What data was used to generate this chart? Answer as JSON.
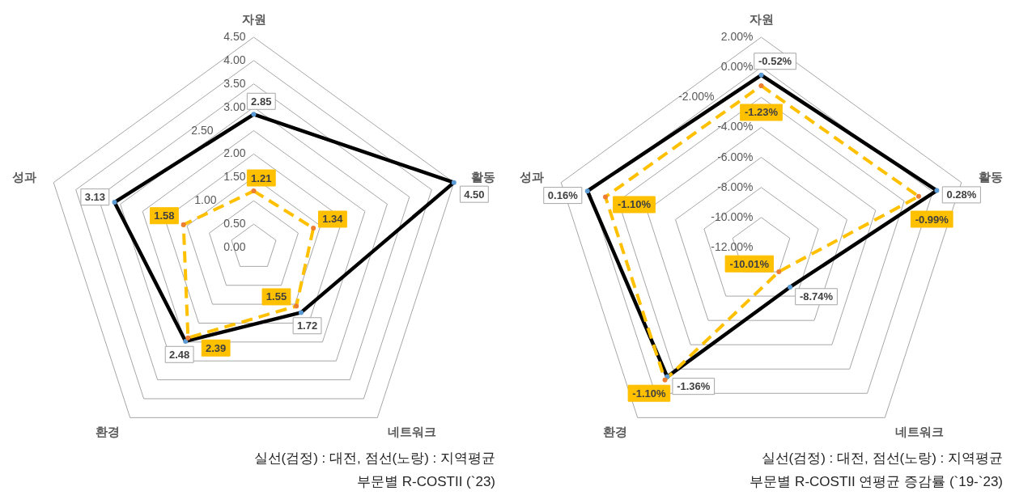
{
  "chart_data": [
    {
      "type": "radar",
      "title": "부문별 R-COSTII (`23)",
      "annotations": [
        "실선(검정) : 대전, 점선(노랑) : 지역평균"
      ],
      "categories": [
        "자원",
        "활동",
        "네트워크",
        "환경",
        "성과"
      ],
      "ylim": [
        0,
        4.5
      ],
      "yticks": [
        {
          "value": 0,
          "label": "0.00"
        },
        {
          "value": 0.5,
          "label": "0.50"
        },
        {
          "value": 1,
          "label": "1.00"
        },
        {
          "value": 1.5,
          "label": "1.50"
        },
        {
          "value": 2,
          "label": "2.00"
        },
        {
          "value": 2.5,
          "label": "2.50"
        },
        {
          "value": 3,
          "label": "3.00"
        },
        {
          "value": 3.5,
          "label": "3.50"
        },
        {
          "value": 4,
          "label": "4.00"
        },
        {
          "value": 4.5,
          "label": "4.50"
        }
      ],
      "grid": true,
      "marker": "circle",
      "series": [
        {
          "color": "#000000",
          "colors": [
            "#5b9bd5",
            "#5b9bd5",
            "#5b9bd5",
            "#5b9bd5",
            "#5b9bd5"
          ],
          "line_style": "solid",
          "values": [
            2.85,
            4.5,
            1.72,
            2.48,
            3.13
          ],
          "value_labels": [
            "2.85",
            "4.50",
            "1.72",
            "2.48",
            "3.13"
          ]
        },
        {
          "color": "#ffc000",
          "colors": [
            "#ed7d31",
            "#ed7d31",
            "#ed7d31",
            "#ed7d31",
            "#ed7d31"
          ],
          "line_style": "dashed",
          "values": [
            1.21,
            1.34,
            1.55,
            2.39,
            1.58
          ],
          "value_labels": [
            "1.21",
            "1.34",
            "1.55",
            "2.39",
            "1.58"
          ]
        }
      ]
    },
    {
      "type": "radar",
      "title": "부문별 R-COSTII 연평균 증감률 (`19-`23)",
      "annotations": [
        "실선(검정) : 대전, 점선(노랑) : 지역평균"
      ],
      "categories": [
        "자원",
        "활동",
        "네트워크",
        "환경",
        "성과"
      ],
      "ylim": [
        -12,
        2
      ],
      "yticks": [
        {
          "value": -12,
          "label": "-12.00%"
        },
        {
          "value": -10,
          "label": "-10.00%"
        },
        {
          "value": -8,
          "label": "-8.00%"
        },
        {
          "value": -6,
          "label": "-6.00%"
        },
        {
          "value": -4,
          "label": "-4.00%"
        },
        {
          "value": -2,
          "label": "-2.00%"
        },
        {
          "value": 0,
          "label": "0.00%"
        },
        {
          "value": 2,
          "label": "2.00%"
        }
      ],
      "grid": true,
      "marker": "circle",
      "series": [
        {
          "color": "#000000",
          "colors": [
            "#5b9bd5",
            "#5b9bd5",
            "#5b9bd5",
            "#5b9bd5",
            "#5b9bd5"
          ],
          "line_style": "solid",
          "values": [
            -0.52,
            0.28,
            -8.74,
            -1.36,
            0.16
          ],
          "value_labels": [
            "-0.52%",
            "0.28%",
            "-8.74%",
            "-1.36%",
            "0.16%"
          ]
        },
        {
          "color": "#ffc000",
          "colors": [
            "#ed7d31",
            "#ed7d31",
            "#ed7d31",
            "#ed7d31",
            "#ed7d31"
          ],
          "line_style": "dashed",
          "values": [
            -1.23,
            -0.99,
            -10.01,
            -1.1,
            -1.1
          ],
          "value_labels": [
            "-1.23%",
            "-0.99%",
            "-10.01%",
            "-1.10%",
            "-1.10%"
          ]
        }
      ]
    }
  ]
}
